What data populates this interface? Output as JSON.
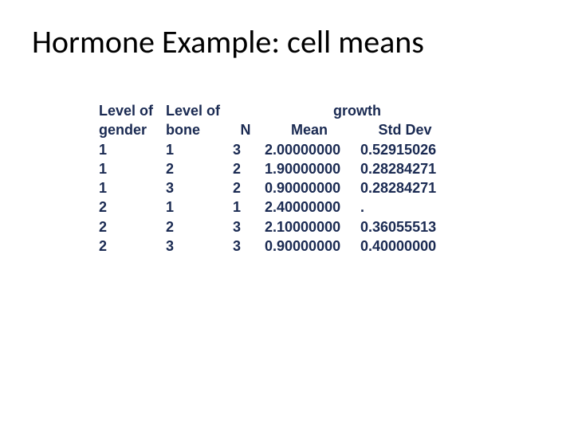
{
  "title": "Hormone Example: cell means",
  "colors": {
    "title": "#000000",
    "data_text": "#1a2a52",
    "background": "#ffffff"
  },
  "fonts": {
    "title_family": "Calibri",
    "title_size_pt": 30,
    "title_weight": "400",
    "data_family": "Arial",
    "data_size_pt": 13.5,
    "data_weight": "bold"
  },
  "table": {
    "type": "table",
    "headers": {
      "gender_line1": "Level of",
      "gender_line2": "gender",
      "bone_line1": "Level of",
      "bone_line2": "bone",
      "n": "N",
      "growth_group": "growth",
      "mean": "Mean",
      "std": "Std Dev"
    },
    "rows": [
      {
        "gender": "1",
        "bone": "1",
        "n": "3",
        "mean": "2.00000000",
        "std": "0.52915026"
      },
      {
        "gender": "1",
        "bone": "2",
        "n": "2",
        "mean": "1.90000000",
        "std": "0.28284271"
      },
      {
        "gender": "1",
        "bone": "3",
        "n": "2",
        "mean": "0.90000000",
        "std": "0.28284271"
      },
      {
        "gender": "2",
        "bone": "1",
        "n": "1",
        "mean": "2.40000000",
        "std": "."
      },
      {
        "gender": "2",
        "bone": "2",
        "n": "3",
        "mean": "2.10000000",
        "std": "0.36055513"
      },
      {
        "gender": "2",
        "bone": "3",
        "n": "3",
        "mean": "0.90000000",
        "std": "0.40000000"
      }
    ]
  }
}
